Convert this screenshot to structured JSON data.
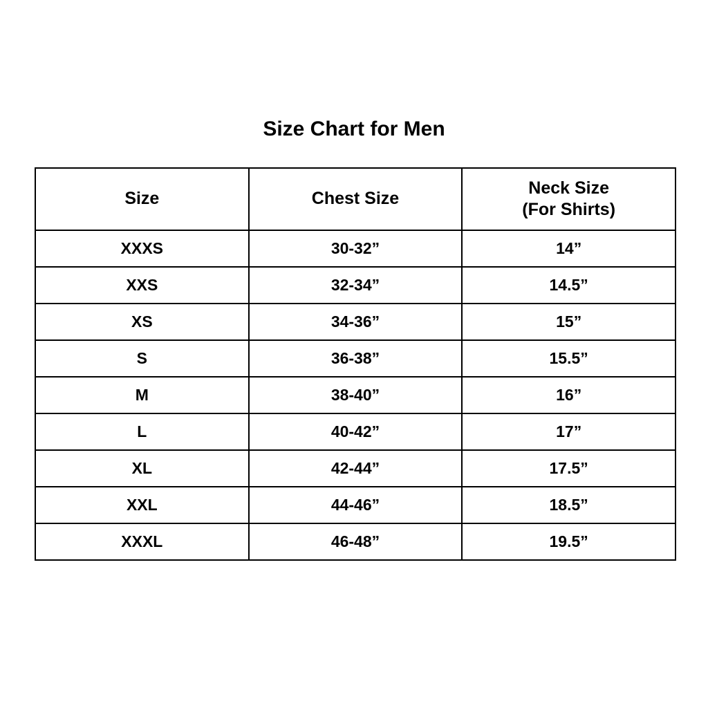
{
  "title": "Size Chart for Men",
  "table": {
    "headers": [
      {
        "label": "Size",
        "sub": ""
      },
      {
        "label": "Chest Size",
        "sub": ""
      },
      {
        "label": "Neck Size",
        "sub": "(For Shirts)"
      }
    ],
    "rows": [
      {
        "size": "XXXS",
        "chest": "30-32”",
        "neck": "14”"
      },
      {
        "size": "XXS",
        "chest": "32-34”",
        "neck": "14.5”"
      },
      {
        "size": "XS",
        "chest": "34-36”",
        "neck": "15”"
      },
      {
        "size": "S",
        "chest": "36-38”",
        "neck": "15.5”"
      },
      {
        "size": "M",
        "chest": "38-40”",
        "neck": "16”"
      },
      {
        "size": "L",
        "chest": "40-42”",
        "neck": "17”"
      },
      {
        "size": "XL",
        "chest": "42-44”",
        "neck": "17.5”"
      },
      {
        "size": "XXL",
        "chest": "44-46”",
        "neck": "18.5”"
      },
      {
        "size": "XXXL",
        "chest": "46-48”",
        "neck": "19.5”"
      }
    ]
  },
  "chart_data": {
    "type": "table",
    "title": "Size Chart for Men",
    "columns": [
      "Size",
      "Chest Size",
      "Neck Size (For Shirts)"
    ],
    "rows": [
      [
        "XXXS",
        "30-32”",
        "14”"
      ],
      [
        "XXS",
        "32-34”",
        "14.5”"
      ],
      [
        "XS",
        "34-36”",
        "15”"
      ],
      [
        "S",
        "36-38”",
        "15.5”"
      ],
      [
        "M",
        "38-40”",
        "16”"
      ],
      [
        "L",
        "40-42”",
        "17”"
      ],
      [
        "XL",
        "42-44”",
        "17.5”"
      ],
      [
        "XXL",
        "44-46”",
        "18.5”"
      ],
      [
        "XXXL",
        "46-48”",
        "19.5”"
      ]
    ],
    "colors": {
      "text": "#000000",
      "border": "#000000",
      "background": "#ffffff"
    },
    "layout": {
      "columns_equal_width": true,
      "all_text_bold": true,
      "all_text_centered": true
    }
  }
}
